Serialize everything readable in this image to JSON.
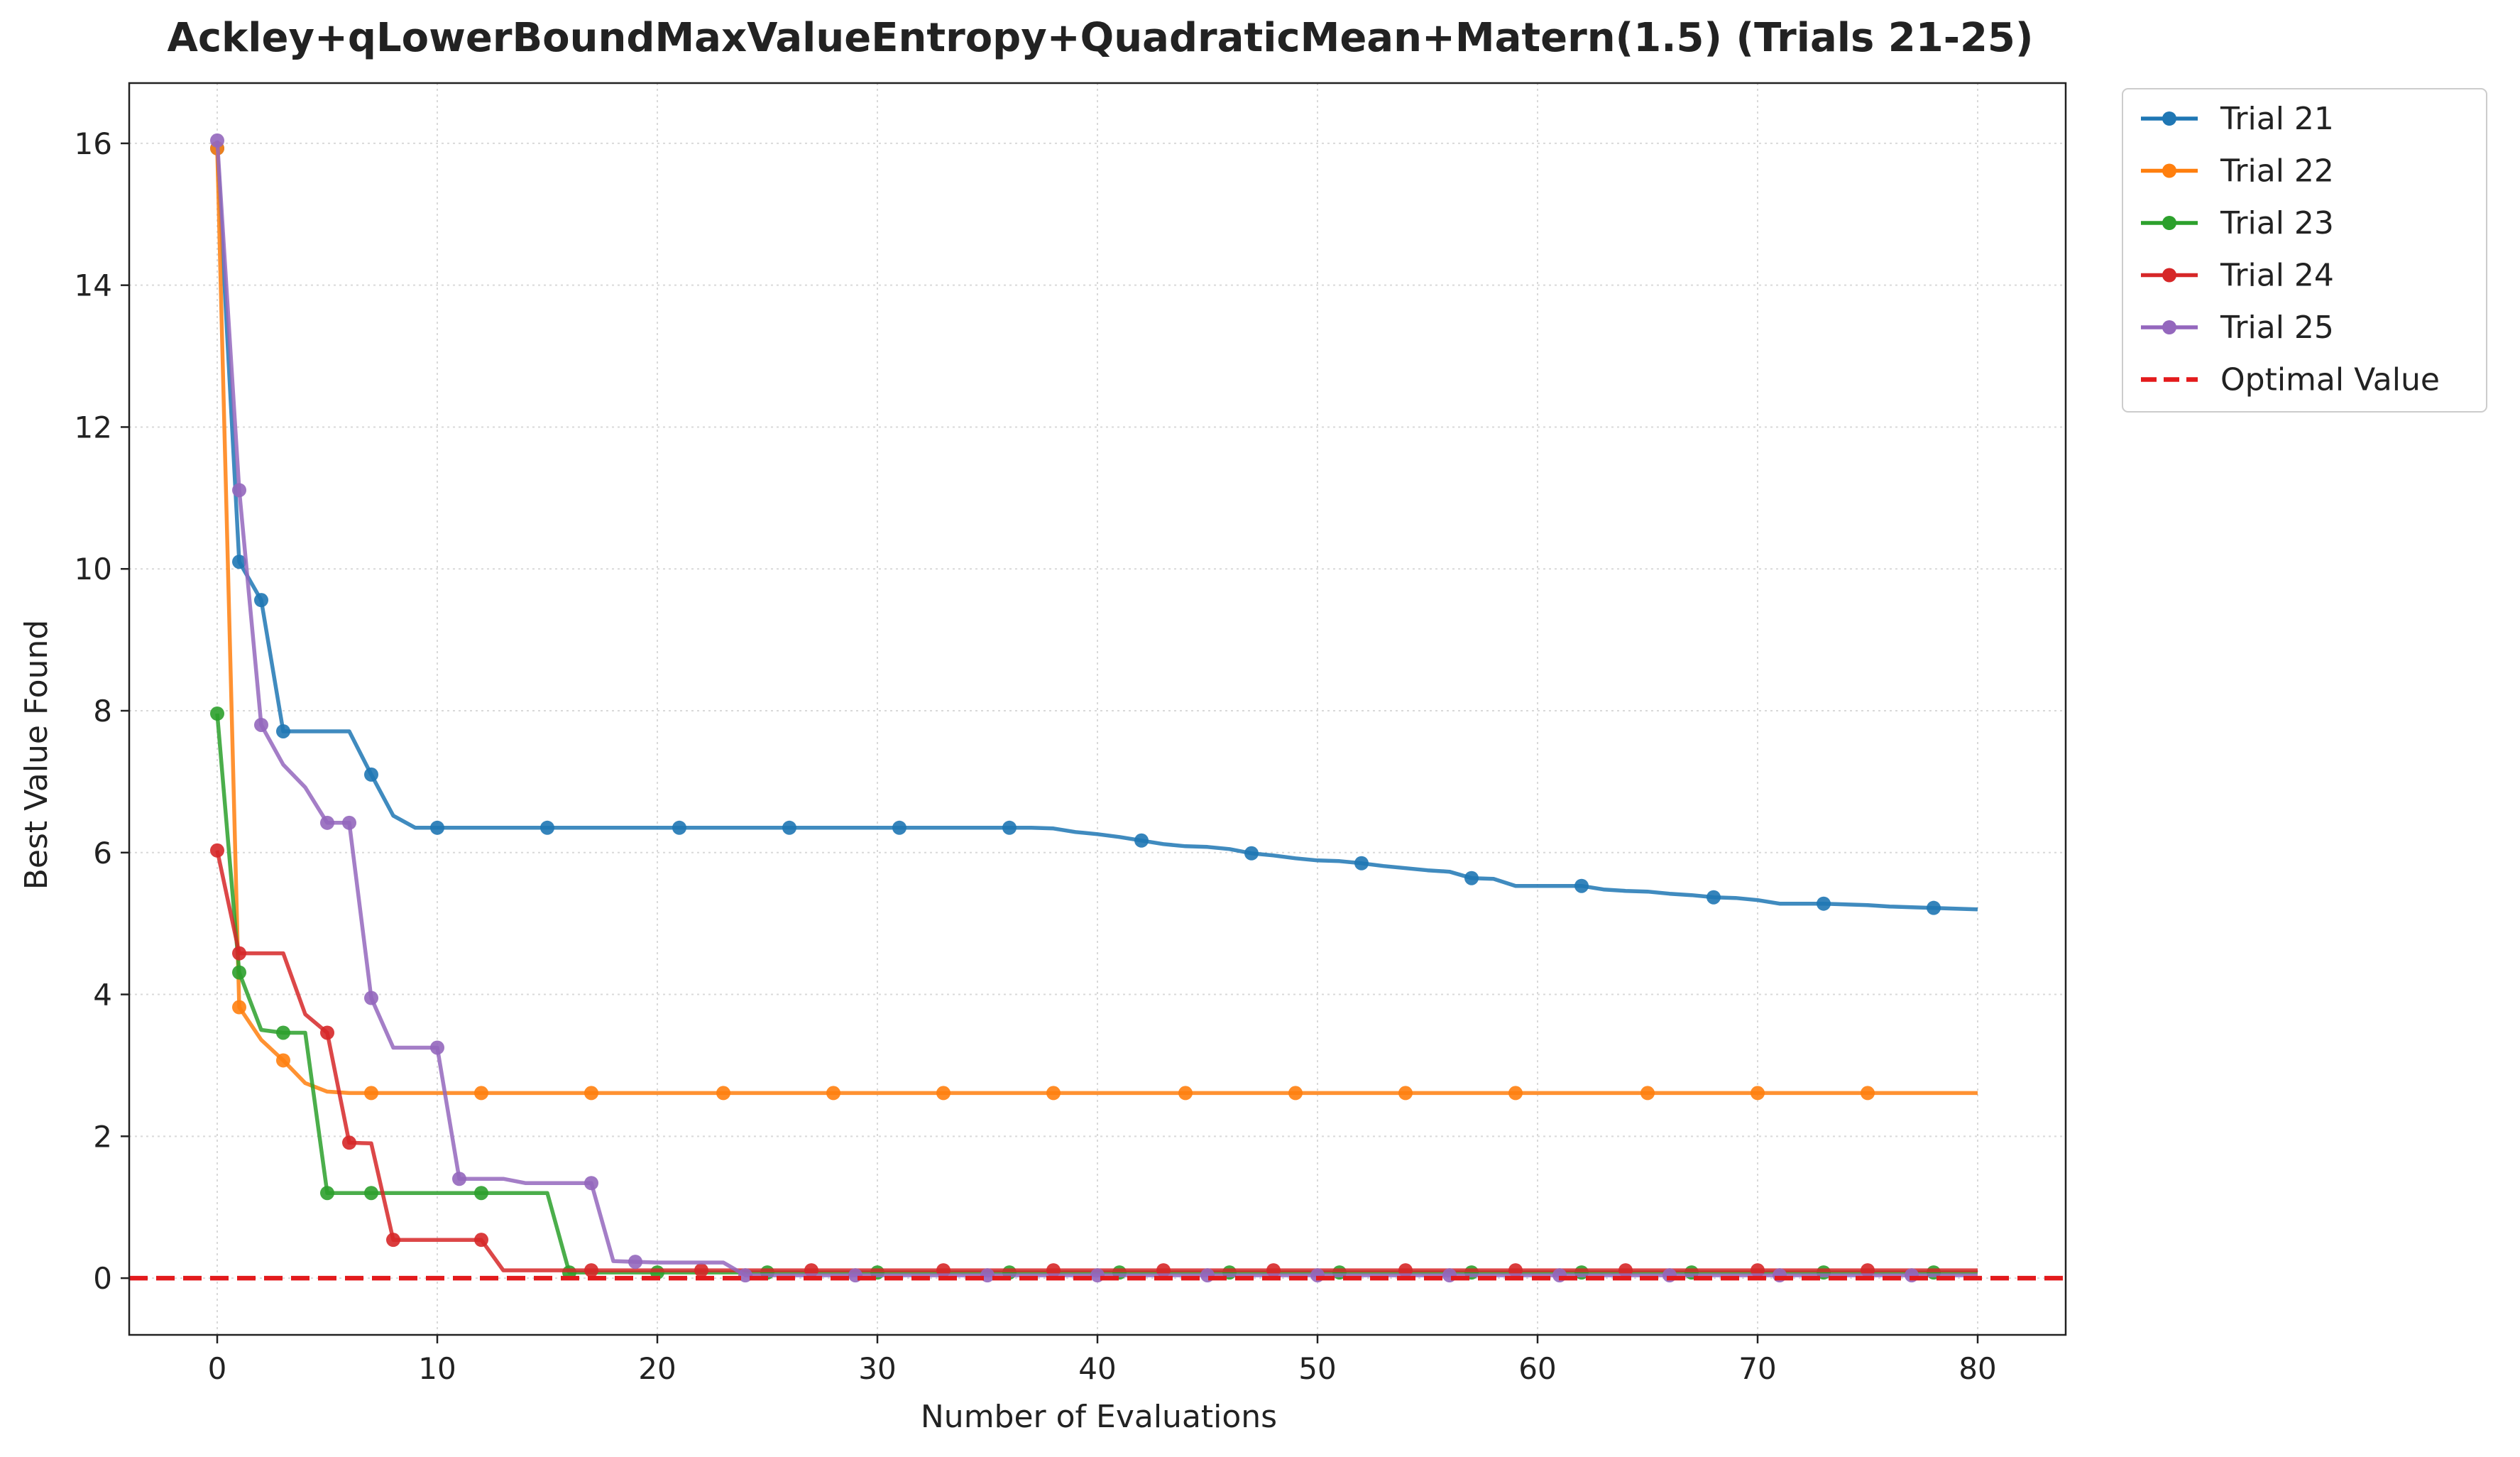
{
  "chart_data": {
    "type": "line",
    "title": "Ackley+qLowerBoundMaxValueEntropy+QuadraticMean+Matern(1.5) (Trials 21-25)",
    "xlabel": "Number of Evaluations",
    "ylabel": "Best Value Found",
    "xlim": [
      -4,
      84
    ],
    "ylim": [
      -0.8,
      16.85
    ],
    "xticks": [
      0,
      10,
      20,
      30,
      40,
      50,
      60,
      70,
      80
    ],
    "yticks": [
      0,
      2,
      4,
      6,
      8,
      10,
      12,
      14,
      16
    ],
    "grid": true,
    "legend_position": "outside-top-right",
    "series": [
      {
        "name": "Trial 21",
        "color": "#1f77b4",
        "x": [
          0,
          1,
          2,
          3,
          4,
          5,
          6,
          7,
          8,
          9,
          10,
          11,
          12,
          13,
          14,
          15,
          16,
          17,
          18,
          19,
          20,
          21,
          22,
          23,
          24,
          25,
          26,
          27,
          28,
          29,
          30,
          31,
          32,
          33,
          34,
          35,
          36,
          37,
          38,
          39,
          40,
          41,
          42,
          43,
          44,
          45,
          46,
          47,
          48,
          49,
          50,
          51,
          52,
          53,
          54,
          55,
          56,
          57,
          58,
          59,
          60,
          61,
          62,
          63,
          64,
          65,
          66,
          67,
          68,
          69,
          70,
          71,
          72,
          73,
          74,
          75,
          76,
          77,
          78,
          79,
          80
        ],
        "values": [
          15.93,
          10.1,
          9.56,
          7.71,
          7.71,
          7.71,
          7.71,
          7.1,
          6.52,
          6.35,
          6.35,
          6.35,
          6.35,
          6.35,
          6.35,
          6.35,
          6.35,
          6.35,
          6.35,
          6.35,
          6.35,
          6.35,
          6.35,
          6.35,
          6.35,
          6.35,
          6.35,
          6.35,
          6.35,
          6.35,
          6.35,
          6.35,
          6.35,
          6.35,
          6.35,
          6.35,
          6.35,
          6.35,
          6.34,
          6.29,
          6.26,
          6.22,
          6.17,
          6.12,
          6.09,
          6.08,
          6.05,
          5.99,
          5.96,
          5.92,
          5.89,
          5.88,
          5.85,
          5.81,
          5.78,
          5.75,
          5.73,
          5.64,
          5.63,
          5.53,
          5.53,
          5.53,
          5.53,
          5.48,
          5.46,
          5.45,
          5.42,
          5.4,
          5.37,
          5.36,
          5.33,
          5.28,
          5.28,
          5.28,
          5.27,
          5.26,
          5.24,
          5.23,
          5.22,
          5.21,
          5.2
        ],
        "markers_every": [
          0,
          1,
          2,
          3,
          7,
          10,
          15,
          21,
          26,
          31,
          36,
          42,
          47,
          52,
          57,
          62,
          68,
          73,
          78
        ]
      },
      {
        "name": "Trial 22",
        "color": "#ff7f0e",
        "x": [
          0,
          1,
          2,
          3,
          4,
          5,
          6,
          7,
          8,
          9,
          10,
          11,
          12,
          13,
          14,
          15,
          16,
          17,
          18,
          19,
          20,
          21,
          22,
          23,
          24,
          25,
          26,
          27,
          28,
          29,
          30,
          31,
          32,
          33,
          34,
          35,
          36,
          37,
          38,
          39,
          40,
          41,
          42,
          43,
          44,
          45,
          46,
          47,
          48,
          49,
          50,
          51,
          52,
          53,
          54,
          55,
          56,
          57,
          58,
          59,
          60,
          61,
          62,
          63,
          64,
          65,
          66,
          67,
          68,
          69,
          70,
          71,
          72,
          73,
          74,
          75,
          76,
          77,
          78,
          79,
          80
        ],
        "values": [
          15.93,
          3.82,
          3.36,
          3.07,
          2.75,
          2.63,
          2.61,
          2.61,
          2.61,
          2.61,
          2.61,
          2.61,
          2.61,
          2.61,
          2.61,
          2.61,
          2.61,
          2.61,
          2.61,
          2.61,
          2.61,
          2.61,
          2.61,
          2.61,
          2.61,
          2.61,
          2.61,
          2.61,
          2.61,
          2.61,
          2.61,
          2.61,
          2.61,
          2.61,
          2.61,
          2.61,
          2.61,
          2.61,
          2.61,
          2.61,
          2.61,
          2.61,
          2.61,
          2.61,
          2.61,
          2.61,
          2.61,
          2.61,
          2.61,
          2.61,
          2.61,
          2.61,
          2.61,
          2.61,
          2.61,
          2.61,
          2.61,
          2.61,
          2.61,
          2.61,
          2.61,
          2.61,
          2.61,
          2.61,
          2.61,
          2.61,
          2.61,
          2.61,
          2.61,
          2.61,
          2.61,
          2.61,
          2.61,
          2.61,
          2.61,
          2.61,
          2.61,
          2.61,
          2.61,
          2.61,
          2.61
        ],
        "markers_every": [
          0,
          1,
          3,
          7,
          12,
          17,
          23,
          28,
          33,
          38,
          44,
          49,
          54,
          59,
          65,
          70,
          75
        ]
      },
      {
        "name": "Trial 23",
        "color": "#2ca02c",
        "x": [
          0,
          1,
          2,
          3,
          4,
          5,
          6,
          7,
          8,
          9,
          10,
          11,
          12,
          13,
          14,
          15,
          16,
          17,
          18,
          19,
          20,
          21,
          22,
          23,
          24,
          25,
          26,
          27,
          28,
          29,
          30,
          31,
          32,
          33,
          34,
          35,
          36,
          37,
          38,
          39,
          40,
          41,
          42,
          43,
          44,
          45,
          46,
          47,
          48,
          49,
          50,
          51,
          52,
          53,
          54,
          55,
          56,
          57,
          58,
          59,
          60,
          61,
          62,
          63,
          64,
          65,
          66,
          67,
          68,
          69,
          70,
          71,
          72,
          73,
          74,
          75,
          76,
          77,
          78,
          79,
          80
        ],
        "values": [
          7.96,
          4.31,
          3.5,
          3.46,
          3.46,
          1.2,
          1.2,
          1.2,
          1.2,
          1.2,
          1.2,
          1.2,
          1.2,
          1.2,
          1.2,
          1.2,
          0.08,
          0.08,
          0.08,
          0.08,
          0.08,
          0.08,
          0.08,
          0.08,
          0.08,
          0.08,
          0.08,
          0.08,
          0.08,
          0.08,
          0.08,
          0.08,
          0.08,
          0.08,
          0.08,
          0.08,
          0.08,
          0.08,
          0.08,
          0.08,
          0.08,
          0.08,
          0.08,
          0.08,
          0.08,
          0.08,
          0.08,
          0.08,
          0.08,
          0.08,
          0.08,
          0.08,
          0.08,
          0.08,
          0.08,
          0.08,
          0.08,
          0.08,
          0.08,
          0.08,
          0.08,
          0.08,
          0.08,
          0.08,
          0.08,
          0.08,
          0.08,
          0.08,
          0.08,
          0.08,
          0.08,
          0.08,
          0.08,
          0.08,
          0.08,
          0.08,
          0.08,
          0.08,
          0.08,
          0.08,
          0.08
        ],
        "markers_every": [
          0,
          1,
          3,
          5,
          7,
          12,
          16,
          20,
          25,
          30,
          36,
          41,
          46,
          51,
          57,
          62,
          67,
          73,
          78
        ]
      },
      {
        "name": "Trial 24",
        "color": "#d62728",
        "x": [
          0,
          1,
          2,
          3,
          4,
          5,
          6,
          7,
          8,
          9,
          10,
          11,
          12,
          13,
          14,
          15,
          16,
          17,
          18,
          19,
          20,
          21,
          22,
          23,
          24,
          25,
          26,
          27,
          28,
          29,
          30,
          31,
          32,
          33,
          34,
          35,
          36,
          37,
          38,
          39,
          40,
          41,
          42,
          43,
          44,
          45,
          46,
          47,
          48,
          49,
          50,
          51,
          52,
          53,
          54,
          55,
          56,
          57,
          58,
          59,
          60,
          61,
          62,
          63,
          64,
          65,
          66,
          67,
          68,
          69,
          70,
          71,
          72,
          73,
          74,
          75,
          76,
          77,
          78,
          79,
          80
        ],
        "values": [
          6.03,
          4.58,
          4.58,
          4.58,
          3.72,
          3.46,
          1.91,
          1.9,
          0.54,
          0.54,
          0.54,
          0.54,
          0.54,
          0.11,
          0.11,
          0.11,
          0.11,
          0.11,
          0.11,
          0.11,
          0.11,
          0.11,
          0.11,
          0.11,
          0.11,
          0.11,
          0.11,
          0.11,
          0.11,
          0.11,
          0.11,
          0.11,
          0.11,
          0.11,
          0.11,
          0.11,
          0.11,
          0.11,
          0.11,
          0.11,
          0.11,
          0.11,
          0.11,
          0.11,
          0.11,
          0.11,
          0.11,
          0.11,
          0.11,
          0.11,
          0.11,
          0.11,
          0.11,
          0.11,
          0.11,
          0.11,
          0.11,
          0.11,
          0.11,
          0.11,
          0.11,
          0.11,
          0.11,
          0.11,
          0.11,
          0.11,
          0.11,
          0.11,
          0.11,
          0.11,
          0.11,
          0.11,
          0.11,
          0.11,
          0.11,
          0.11,
          0.11,
          0.11,
          0.11,
          0.11,
          0.11
        ],
        "markers_every": [
          0,
          1,
          5,
          6,
          8,
          12,
          17,
          22,
          27,
          33,
          38,
          43,
          48,
          54,
          59,
          64,
          70,
          75
        ]
      },
      {
        "name": "Trial 25",
        "color": "#9467bd",
        "x": [
          0,
          1,
          2,
          3,
          4,
          5,
          6,
          7,
          8,
          9,
          10,
          11,
          12,
          13,
          14,
          15,
          16,
          17,
          18,
          19,
          20,
          21,
          22,
          23,
          24,
          25,
          26,
          27,
          28,
          29,
          30,
          31,
          32,
          33,
          34,
          35,
          36,
          37,
          38,
          39,
          40,
          41,
          42,
          43,
          44,
          45,
          46,
          47,
          48,
          49,
          50,
          51,
          52,
          53,
          54,
          55,
          56,
          57,
          58,
          59,
          60,
          61,
          62,
          63,
          64,
          65,
          66,
          67,
          68,
          69,
          70,
          71,
          72,
          73,
          74,
          75,
          76,
          77,
          78,
          79,
          80
        ],
        "values": [
          16.04,
          11.11,
          7.8,
          7.24,
          6.92,
          6.42,
          6.42,
          3.95,
          3.25,
          3.25,
          3.25,
          1.4,
          1.4,
          1.4,
          1.34,
          1.34,
          1.34,
          1.34,
          0.24,
          0.23,
          0.22,
          0.22,
          0.22,
          0.22,
          0.04,
          0.04,
          0.04,
          0.04,
          0.04,
          0.04,
          0.04,
          0.04,
          0.04,
          0.04,
          0.04,
          0.04,
          0.04,
          0.04,
          0.04,
          0.04,
          0.04,
          0.04,
          0.04,
          0.04,
          0.04,
          0.04,
          0.04,
          0.04,
          0.04,
          0.04,
          0.04,
          0.04,
          0.04,
          0.04,
          0.04,
          0.04,
          0.04,
          0.04,
          0.04,
          0.04,
          0.04,
          0.04,
          0.04,
          0.04,
          0.04,
          0.04,
          0.04,
          0.04,
          0.04,
          0.04,
          0.04,
          0.04,
          0.04,
          0.04,
          0.04,
          0.04,
          0.04,
          0.04,
          0.04,
          0.04,
          0.04
        ],
        "markers_every": [
          0,
          1,
          2,
          5,
          6,
          7,
          10,
          11,
          17,
          19,
          24,
          29,
          35,
          40,
          45,
          50,
          56,
          61,
          66,
          71,
          77
        ]
      }
    ],
    "reference_line": {
      "name": "Optimal Value",
      "y": 0,
      "color": "#e31a1c",
      "style": "dashed"
    }
  }
}
